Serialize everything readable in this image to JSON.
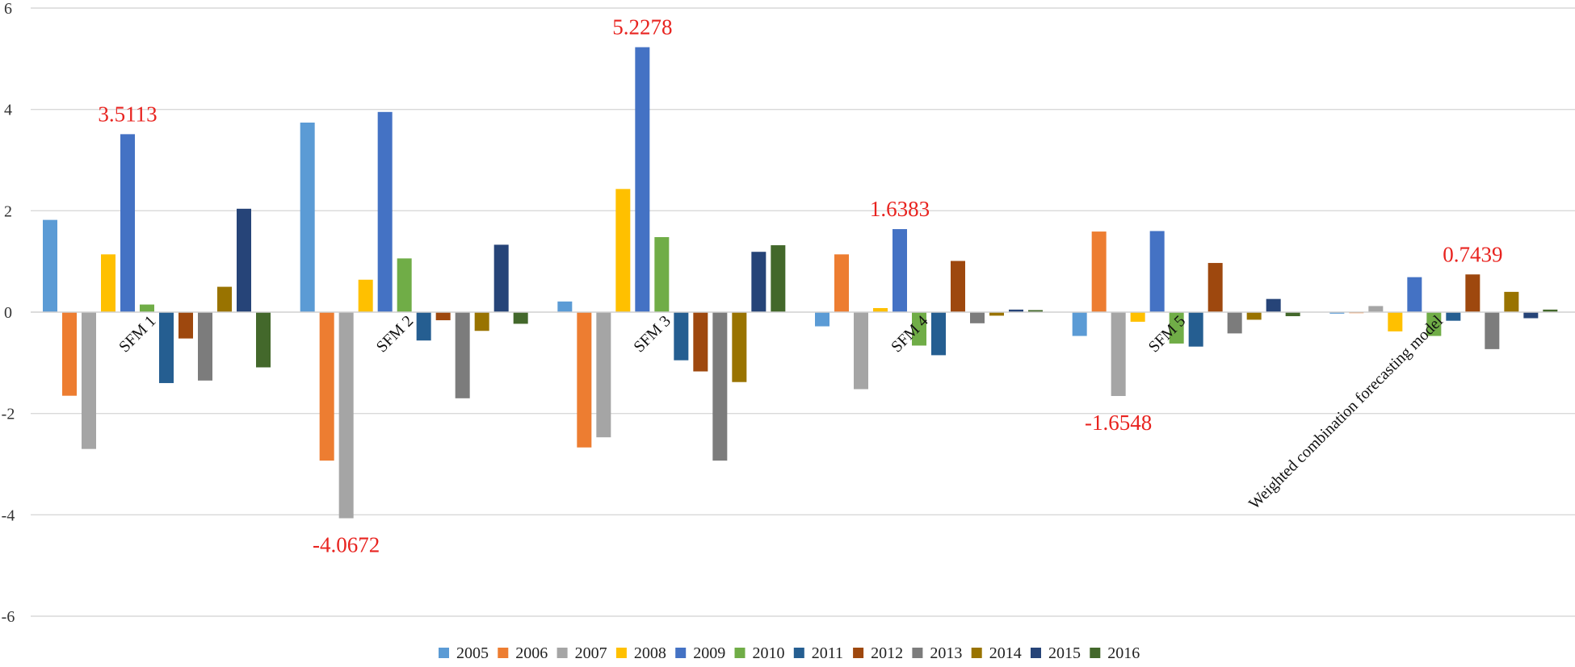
{
  "chart_data": {
    "type": "bar",
    "title": "",
    "xlabel": "",
    "ylabel": "",
    "ylim": [
      -6,
      6
    ],
    "yticks": [
      6,
      4,
      2,
      0,
      -2,
      -4,
      -6
    ],
    "grid": true,
    "legend_position": "bottom",
    "categories": [
      "SFM 1",
      "SFM 2",
      "SFM 3",
      "SFM 4",
      "SFM 5",
      "Weighted combination forecasting model"
    ],
    "series": [
      {
        "name": "2005",
        "color": "#5b9bd5",
        "values": [
          1.82,
          3.74,
          0.21,
          -0.28,
          -0.47,
          -0.03
        ]
      },
      {
        "name": "2006",
        "color": "#ed7d31",
        "values": [
          -1.65,
          -2.93,
          -2.67,
          1.14,
          1.59,
          -0.02
        ]
      },
      {
        "name": "2007",
        "color": "#a5a5a5",
        "values": [
          -2.7,
          -4.0672,
          -2.47,
          -1.52,
          -1.6548,
          0.12
        ]
      },
      {
        "name": "2008",
        "color": "#ffc000",
        "values": [
          1.14,
          0.64,
          2.43,
          0.08,
          -0.19,
          -0.38
        ]
      },
      {
        "name": "2009",
        "color": "#4472c4",
        "values": [
          3.5113,
          3.95,
          5.2278,
          1.6383,
          1.6,
          0.69
        ]
      },
      {
        "name": "2010",
        "color": "#70ad47",
        "values": [
          0.15,
          1.06,
          1.48,
          -0.66,
          -0.62,
          -0.47
        ]
      },
      {
        "name": "2011",
        "color": "#255e91",
        "values": [
          -1.4,
          -0.56,
          -0.95,
          -0.85,
          -0.68,
          -0.17
        ]
      },
      {
        "name": "2012",
        "color": "#9e480e",
        "values": [
          -0.52,
          -0.16,
          -1.17,
          1.01,
          0.97,
          0.7439
        ]
      },
      {
        "name": "2013",
        "color": "#7c7c7c",
        "values": [
          -1.35,
          -1.7,
          -2.93,
          -0.22,
          -0.42,
          -0.73
        ]
      },
      {
        "name": "2014",
        "color": "#997300",
        "values": [
          0.5,
          -0.37,
          -1.38,
          -0.07,
          -0.15,
          0.4
        ]
      },
      {
        "name": "2015",
        "color": "#264478",
        "values": [
          2.04,
          1.33,
          1.19,
          0.05,
          0.26,
          -0.12
        ]
      },
      {
        "name": "2016",
        "color": "#43682b",
        "values": [
          -1.09,
          -0.23,
          1.32,
          0.04,
          -0.08,
          0.05
        ]
      }
    ],
    "annotations": [
      {
        "text": "3.5113",
        "category": 0,
        "value": 3.5113
      },
      {
        "text": "-4.0672",
        "category": 1,
        "value": -4.0672
      },
      {
        "text": "5.2278",
        "category": 2,
        "value": 5.2278
      },
      {
        "text": "1.6383",
        "category": 3,
        "value": 1.6383
      },
      {
        "text": "-1.6548",
        "category": 4,
        "value": -1.6548
      },
      {
        "text": "0.7439",
        "category": 5,
        "value": 0.7439
      }
    ],
    "annotation_color": "#e8231f"
  }
}
